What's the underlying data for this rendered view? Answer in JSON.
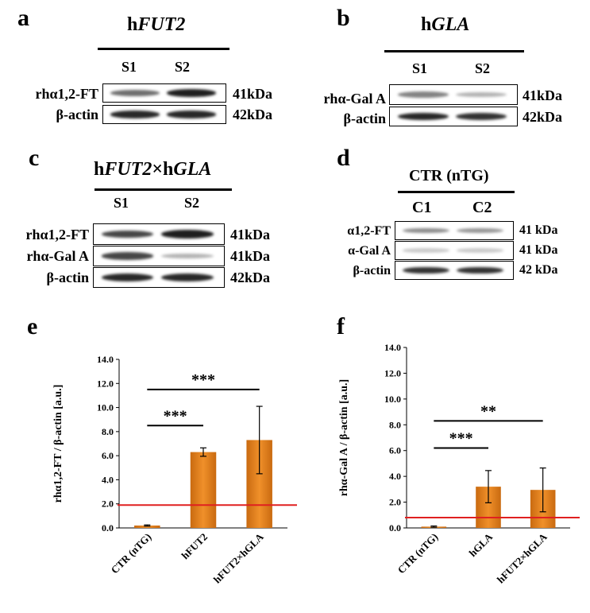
{
  "panels": {
    "a": {
      "letter": "a",
      "title_prefix": "h",
      "title_italic": "FUT2",
      "lanes": [
        "S1",
        "S2"
      ],
      "rows": [
        {
          "label": "rhα1,2-FT",
          "mw": "41kDa",
          "bands": [
            0.55,
            0.95
          ]
        },
        {
          "label": "β-actin",
          "mw": "42kDa",
          "bands": [
            0.9,
            0.9
          ]
        }
      ]
    },
    "b": {
      "letter": "b",
      "title_prefix": "h",
      "title_italic": "GLA",
      "lanes": [
        "S1",
        "S2"
      ],
      "rows": [
        {
          "label": "rhα-Gal A",
          "mw": "41kDa",
          "bands": [
            0.45,
            0.2
          ]
        },
        {
          "label": "β-actin",
          "mw": "42kDa",
          "bands": [
            0.9,
            0.85
          ]
        }
      ]
    },
    "c": {
      "letter": "c",
      "title_parts": [
        "h",
        "FUT2",
        "×h",
        "GLA"
      ],
      "lanes": [
        "S1",
        "S2"
      ],
      "rows": [
        {
          "label": "rhα1,2-FT",
          "mw": "41kDa",
          "bands": [
            0.75,
            0.95
          ]
        },
        {
          "label": "rhα-Gal A",
          "mw": "41kDa",
          "bands": [
            0.75,
            0.2
          ]
        },
        {
          "label": "β-actin",
          "mw": "42kDa",
          "bands": [
            0.9,
            0.9
          ]
        }
      ]
    },
    "d": {
      "letter": "d",
      "title": "CTR (nTG)",
      "lanes": [
        "C1",
        "C2"
      ],
      "rows": [
        {
          "label": "α1,2-FT",
          "mw": "41 kDa",
          "bands": [
            0.4,
            0.35
          ]
        },
        {
          "label": "α-Gal A",
          "mw": "41 kDa",
          "bands": [
            0.08,
            0.08
          ]
        },
        {
          "label": "β-actin",
          "mw": "42 kDa",
          "bands": [
            0.85,
            0.85
          ]
        }
      ]
    },
    "e": {
      "letter": "e"
    },
    "f": {
      "letter": "f"
    }
  },
  "colors": {
    "bar": "#f0902a",
    "bar_dark": "#c96a10",
    "threshold": "#e02020"
  },
  "chart_data": [
    {
      "type": "bar",
      "panel": "e",
      "categories": [
        "CTR (nTG)",
        "hFUT2",
        "hFUT2×hGLA"
      ],
      "values": [
        0.2,
        6.3,
        7.3
      ],
      "errors": [
        0.05,
        0.35,
        2.8
      ],
      "ylabel": "rhα1,2-FT / β-actin [a.u.]",
      "xlabel": "",
      "title": "",
      "ylim": [
        0,
        14
      ],
      "yticks": [
        "0.0",
        "2.0",
        "4.0",
        "6.0",
        "8.0",
        "10.0",
        "12.0",
        "14.0"
      ],
      "threshold": 1.9,
      "significance": [
        {
          "from": 0,
          "to": 1,
          "label": "***",
          "level": 8.5
        },
        {
          "from": 0,
          "to": 2,
          "label": "***",
          "level": 11.5
        }
      ]
    },
    {
      "type": "bar",
      "panel": "f",
      "categories": [
        "CTR (nTG)",
        "hGLA",
        "hFUT2×hGLA"
      ],
      "values": [
        0.1,
        3.2,
        2.95
      ],
      "errors": [
        0.05,
        1.25,
        1.7
      ],
      "ylabel": "rhα-Gal A / β-actin [a.u.]",
      "xlabel": "",
      "title": "",
      "ylim": [
        0,
        14
      ],
      "yticks": [
        "0.0",
        "2.0",
        "4.0",
        "6.0",
        "8.0",
        "10.0",
        "12.0",
        "14.0"
      ],
      "threshold": 0.8,
      "significance": [
        {
          "from": 0,
          "to": 1,
          "label": "***",
          "level": 6.2
        },
        {
          "from": 0,
          "to": 2,
          "label": "**",
          "level": 8.3
        }
      ]
    }
  ]
}
